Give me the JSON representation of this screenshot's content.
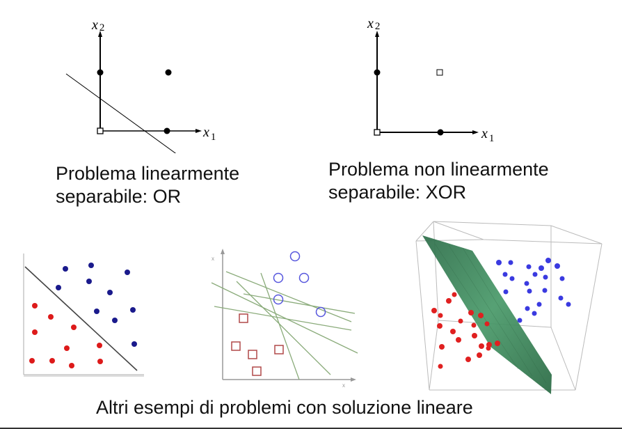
{
  "or_panel": {
    "x_axis_label": "x",
    "x_axis_sub": "1",
    "y_axis_label": "x",
    "y_axis_sub": "2",
    "caption_line1": "Problema linearmente",
    "caption_line2": "separabile: OR"
  },
  "xor_panel": {
    "x_axis_label": "x",
    "x_axis_sub": "1",
    "y_axis_label": "x",
    "y_axis_sub": "2",
    "caption_line1": "Problema non linearmente",
    "caption_line2": "separabile: XOR"
  },
  "bottom_caption": "Altri esempi di problemi con soluzione lineare",
  "colors": {
    "red_class": "#dd1a1a",
    "blue_class": "#1a1a8c",
    "blue_3d": "#3a3ae0",
    "red_3d": "#e02020",
    "plane": "#3f8a5f",
    "hollow_square": "#b04848",
    "hollow_circle": "#5555dd",
    "hyperplane_lines": "#8aab7a"
  }
}
